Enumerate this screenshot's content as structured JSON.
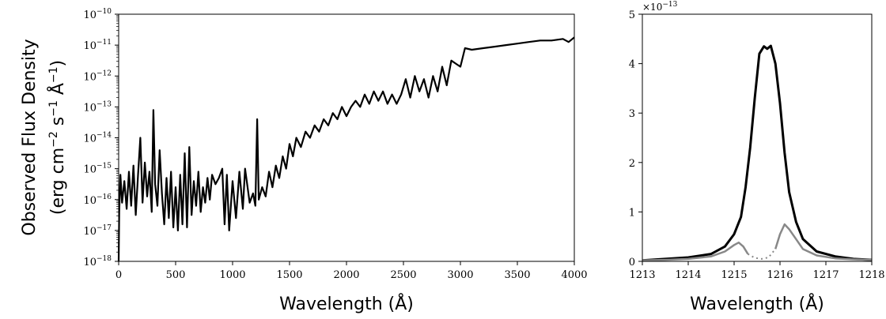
{
  "chart_data": [
    {
      "type": "line",
      "xlabel": "Wavelength (Å)",
      "ylabel_line1": "Observed Flux Density",
      "ylabel_line2": "(erg cm",
      "ylabel_sup1": "−2",
      "ylabel_mid": " s",
      "ylabel_sup2": "−1",
      "ylabel_end1": " Å",
      "ylabel_sup3": "−1",
      "ylabel_end2": ")",
      "xlim": [
        0,
        4000
      ],
      "ylim": [
        -18,
        -10
      ],
      "yscale": "log",
      "xticks": [
        "0",
        "500",
        "1000",
        "1500",
        "2000",
        "2500",
        "3000",
        "3500",
        "4000"
      ],
      "yticks_exp": [
        "−18",
        "−17",
        "−16",
        "−15",
        "−14",
        "−13",
        "−12",
        "−11",
        "−10"
      ],
      "ytick_base": "10",
      "series": [
        {
          "color": "#000000",
          "points": [
            [
              0,
              -18
            ],
            [
              5,
              -16.4
            ],
            [
              15,
              -15.2
            ],
            [
              30,
              -16.1
            ],
            [
              50,
              -15.4
            ],
            [
              70,
              -16.3
            ],
            [
              90,
              -15.1
            ],
            [
              110,
              -16.2
            ],
            [
              130,
              -14.9
            ],
            [
              150,
              -16.5
            ],
            [
              170,
              -15.2
            ],
            [
              190,
              -14.0
            ],
            [
              210,
              -16.1
            ],
            [
              230,
              -14.8
            ],
            [
              250,
              -15.9
            ],
            [
              270,
              -15.1
            ],
            [
              290,
              -16.4
            ],
            [
              305,
              -13.1
            ],
            [
              320,
              -15.5
            ],
            [
              340,
              -16.2
            ],
            [
              360,
              -14.4
            ],
            [
              380,
              -15.8
            ],
            [
              400,
              -16.8
            ],
            [
              420,
              -15.3
            ],
            [
              440,
              -16.6
            ],
            [
              460,
              -15.1
            ],
            [
              480,
              -16.9
            ],
            [
              500,
              -15.6
            ],
            [
              520,
              -17.0
            ],
            [
              540,
              -15.2
            ],
            [
              560,
              -16.8
            ],
            [
              580,
              -14.5
            ],
            [
              600,
              -16.9
            ],
            [
              620,
              -14.3
            ],
            [
              640,
              -16.5
            ],
            [
              660,
              -15.4
            ],
            [
              680,
              -16.2
            ],
            [
              700,
              -15.1
            ],
            [
              720,
              -16.4
            ],
            [
              740,
              -15.6
            ],
            [
              760,
              -16.1
            ],
            [
              780,
              -15.3
            ],
            [
              800,
              -16.0
            ],
            [
              820,
              -15.2
            ],
            [
              850,
              -15.5
            ],
            [
              880,
              -15.3
            ],
            [
              910,
              -15.0
            ],
            [
              930,
              -16.8
            ],
            [
              950,
              -15.2
            ],
            [
              970,
              -17.0
            ],
            [
              1000,
              -15.4
            ],
            [
              1030,
              -16.6
            ],
            [
              1060,
              -15.1
            ],
            [
              1090,
              -16.3
            ],
            [
              1110,
              -15.0
            ],
            [
              1150,
              -16.1
            ],
            [
              1180,
              -15.8
            ],
            [
              1200,
              -16.2
            ],
            [
              1216,
              -13.4
            ],
            [
              1230,
              -16.0
            ],
            [
              1260,
              -15.6
            ],
            [
              1290,
              -15.9
            ],
            [
              1320,
              -15.1
            ],
            [
              1350,
              -15.6
            ],
            [
              1380,
              -14.9
            ],
            [
              1410,
              -15.3
            ],
            [
              1440,
              -14.6
            ],
            [
              1470,
              -15.0
            ],
            [
              1500,
              -14.2
            ],
            [
              1530,
              -14.6
            ],
            [
              1560,
              -14.0
            ],
            [
              1600,
              -14.3
            ],
            [
              1640,
              -13.8
            ],
            [
              1680,
              -14.0
            ],
            [
              1720,
              -13.6
            ],
            [
              1760,
              -13.8
            ],
            [
              1800,
              -13.4
            ],
            [
              1840,
              -13.6
            ],
            [
              1880,
              -13.2
            ],
            [
              1920,
              -13.4
            ],
            [
              1960,
              -13.0
            ],
            [
              2000,
              -13.3
            ],
            [
              2040,
              -13.0
            ],
            [
              2080,
              -12.8
            ],
            [
              2120,
              -13.0
            ],
            [
              2160,
              -12.6
            ],
            [
              2200,
              -12.9
            ],
            [
              2240,
              -12.5
            ],
            [
              2280,
              -12.8
            ],
            [
              2320,
              -12.5
            ],
            [
              2360,
              -12.9
            ],
            [
              2400,
              -12.6
            ],
            [
              2440,
              -12.9
            ],
            [
              2480,
              -12.6
            ],
            [
              2520,
              -12.1
            ],
            [
              2560,
              -12.7
            ],
            [
              2600,
              -12.0
            ],
            [
              2640,
              -12.5
            ],
            [
              2680,
              -12.1
            ],
            [
              2720,
              -12.7
            ],
            [
              2760,
              -12.0
            ],
            [
              2800,
              -12.5
            ],
            [
              2840,
              -11.7
            ],
            [
              2880,
              -12.3
            ],
            [
              2920,
              -11.5
            ],
            [
              2960,
              -11.6
            ],
            [
              3000,
              -11.7
            ],
            [
              3040,
              -11.1
            ],
            [
              3100,
              -11.15
            ],
            [
              3200,
              -11.1
            ],
            [
              3300,
              -11.05
            ],
            [
              3400,
              -11.0
            ],
            [
              3500,
              -10.95
            ],
            [
              3600,
              -10.9
            ],
            [
              3700,
              -10.85
            ],
            [
              3800,
              -10.85
            ],
            [
              3900,
              -10.8
            ],
            [
              3950,
              -10.9
            ],
            [
              4000,
              -10.75
            ]
          ]
        }
      ]
    },
    {
      "type": "line",
      "xlabel": "Wavelength (Å)",
      "xlim": [
        1213,
        1218
      ],
      "ylim": [
        0,
        5
      ],
      "xticks": [
        "1213",
        "1214",
        "1215",
        "1216",
        "1217",
        "1218"
      ],
      "yticks": [
        "0",
        "1",
        "2",
        "3",
        "4",
        "5"
      ],
      "multiplier_base": "×10",
      "multiplier_exp": "−13",
      "series": [
        {
          "color": "#000000",
          "points": [
            [
              1213,
              0.02
            ],
            [
              1213.5,
              0.05
            ],
            [
              1214,
              0.08
            ],
            [
              1214.5,
              0.15
            ],
            [
              1214.8,
              0.3
            ],
            [
              1215,
              0.55
            ],
            [
              1215.15,
              0.9
            ],
            [
              1215.25,
              1.5
            ],
            [
              1215.35,
              2.3
            ],
            [
              1215.45,
              3.3
            ],
            [
              1215.55,
              4.2
            ],
            [
              1215.65,
              4.35
            ],
            [
              1215.72,
              4.3
            ],
            [
              1215.8,
              4.36
            ],
            [
              1215.9,
              4.0
            ],
            [
              1216.0,
              3.2
            ],
            [
              1216.1,
              2.2
            ],
            [
              1216.2,
              1.4
            ],
            [
              1216.35,
              0.8
            ],
            [
              1216.5,
              0.45
            ],
            [
              1216.8,
              0.2
            ],
            [
              1217.2,
              0.1
            ],
            [
              1217.6,
              0.05
            ],
            [
              1218,
              0.03
            ]
          ]
        },
        {
          "color": "#888888",
          "points": [
            [
              1213,
              0.02
            ],
            [
              1213.5,
              0.03
            ],
            [
              1214,
              0.05
            ],
            [
              1214.5,
              0.1
            ],
            [
              1214.8,
              0.2
            ],
            [
              1215.0,
              0.33
            ],
            [
              1215.1,
              0.38
            ],
            [
              1215.2,
              0.3
            ],
            [
              1215.3,
              0.15
            ]
          ]
        },
        {
          "color": "#888888",
          "points": [
            [
              1215.9,
              0.25
            ],
            [
              1216.0,
              0.55
            ],
            [
              1216.1,
              0.75
            ],
            [
              1216.2,
              0.65
            ],
            [
              1216.35,
              0.45
            ],
            [
              1216.5,
              0.25
            ],
            [
              1216.8,
              0.12
            ],
            [
              1217.2,
              0.06
            ],
            [
              1217.6,
              0.04
            ],
            [
              1218,
              0.03
            ]
          ]
        },
        {
          "color": "#888888",
          "dotted": true,
          "points": [
            [
              1215.3,
              0.15
            ],
            [
              1215.45,
              0.07
            ],
            [
              1215.6,
              0.05
            ],
            [
              1215.75,
              0.08
            ],
            [
              1215.9,
              0.25
            ]
          ]
        }
      ]
    }
  ]
}
